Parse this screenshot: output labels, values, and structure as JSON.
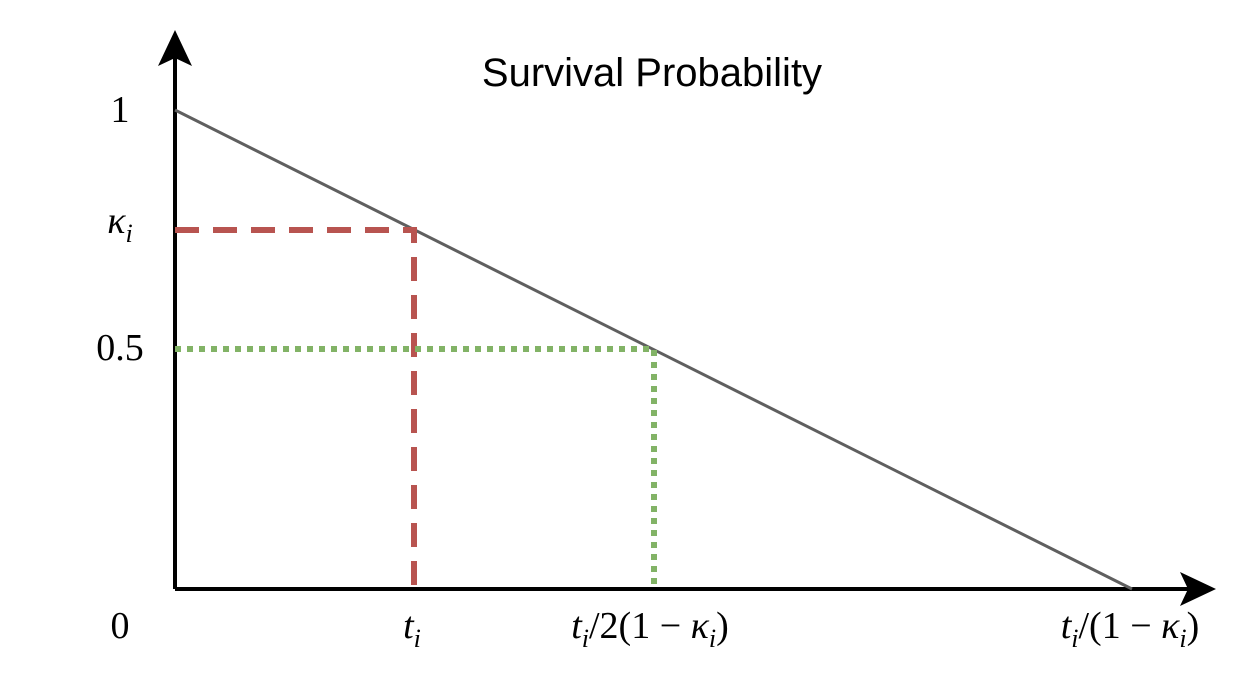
{
  "title": "Survival Probability",
  "y_labels": [
    [
      {
        "text": "1",
        "style": "roman"
      }
    ],
    [
      {
        "text": "κ",
        "style": "italic"
      },
      {
        "text": "i",
        "style": "sub"
      }
    ],
    [
      {
        "text": "0.5",
        "style": "roman"
      }
    ],
    [
      {
        "text": "0",
        "style": "roman"
      }
    ]
  ],
  "x_labels": [
    [
      {
        "text": "t",
        "style": "italic"
      },
      {
        "text": "i",
        "style": "sub"
      }
    ],
    [
      {
        "text": "t",
        "style": "italic"
      },
      {
        "text": "i",
        "style": "sub"
      },
      {
        "text": "/2(1 − ",
        "style": "roman"
      },
      {
        "text": "κ",
        "style": "italic"
      },
      {
        "text": "i",
        "style": "sub"
      },
      {
        "text": ")",
        "style": "roman"
      }
    ],
    [
      {
        "text": "t",
        "style": "italic"
      },
      {
        "text": "i",
        "style": "sub"
      },
      {
        "text": "/(1 − ",
        "style": "roman"
      },
      {
        "text": "κ",
        "style": "italic"
      },
      {
        "text": "i",
        "style": "sub"
      },
      {
        "text": ")",
        "style": "roman"
      }
    ]
  ]
}
